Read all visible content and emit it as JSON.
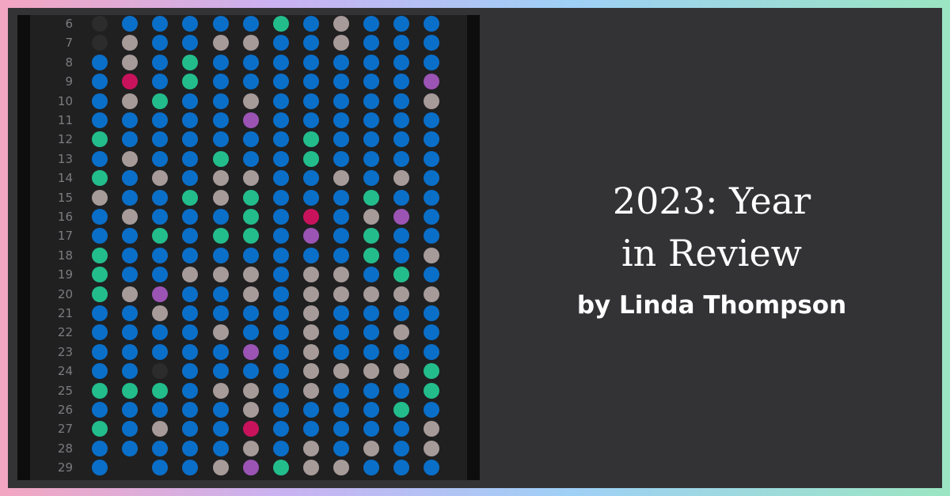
{
  "title_line1": "2023: Year",
  "title_line2": "in Review",
  "byline": "by Linda Thompson",
  "palette": {
    "b": "#0a6fc9",
    "g": "#a79b9a",
    "t": "#23bd8c",
    "p": "#9b54b4",
    "r": "#c8135c",
    "d": "#2c2c2d",
    "n": "transparent"
  },
  "rows": [
    {
      "label": "6",
      "dots": "dbbbbbtbgbbb"
    },
    {
      "label": "7",
      "dots": "dgbbggbbgbbb"
    },
    {
      "label": "8",
      "dots": "bgbtbbbbbbbb"
    },
    {
      "label": "9",
      "dots": "brbtbbbbbbbp"
    },
    {
      "label": "10",
      "dots": "bgtbbgbbbbbg"
    },
    {
      "label": "11",
      "dots": "bbbbbpbbbbbb"
    },
    {
      "label": "12",
      "dots": "tbbbbbbtbbbb"
    },
    {
      "label": "13",
      "dots": "bgbbtbbtbbbb"
    },
    {
      "label": "14",
      "dots": "tbgbggbbgbgb"
    },
    {
      "label": "15",
      "dots": "gbbtgtbbbtbb"
    },
    {
      "label": "16",
      "dots": "bgbbbtbrbgpb"
    },
    {
      "label": "17",
      "dots": "bbtbttbpbtbb"
    },
    {
      "label": "18",
      "dots": "tbbbbbbbbtbg"
    },
    {
      "label": "19",
      "dots": "tbbgggbggbtb"
    },
    {
      "label": "20",
      "dots": "tgpbbgbggggg"
    },
    {
      "label": "21",
      "dots": "bbgbbbbgbbbb"
    },
    {
      "label": "22",
      "dots": "bbbbgbbgbbgb"
    },
    {
      "label": "23",
      "dots": "bbbbbpbgbbbb"
    },
    {
      "label": "24",
      "dots": "bbdbbbbggggt"
    },
    {
      "label": "25",
      "dots": "tttbggbgbbbt"
    },
    {
      "label": "26",
      "dots": "bbbbbgbbbbtb"
    },
    {
      "label": "27",
      "dots": "tbgbbrbbbbbg"
    },
    {
      "label": "28",
      "dots": "bbbbbgbgbgbg"
    },
    {
      "label": "29",
      "dots": "bnbbgptggbbb"
    }
  ]
}
